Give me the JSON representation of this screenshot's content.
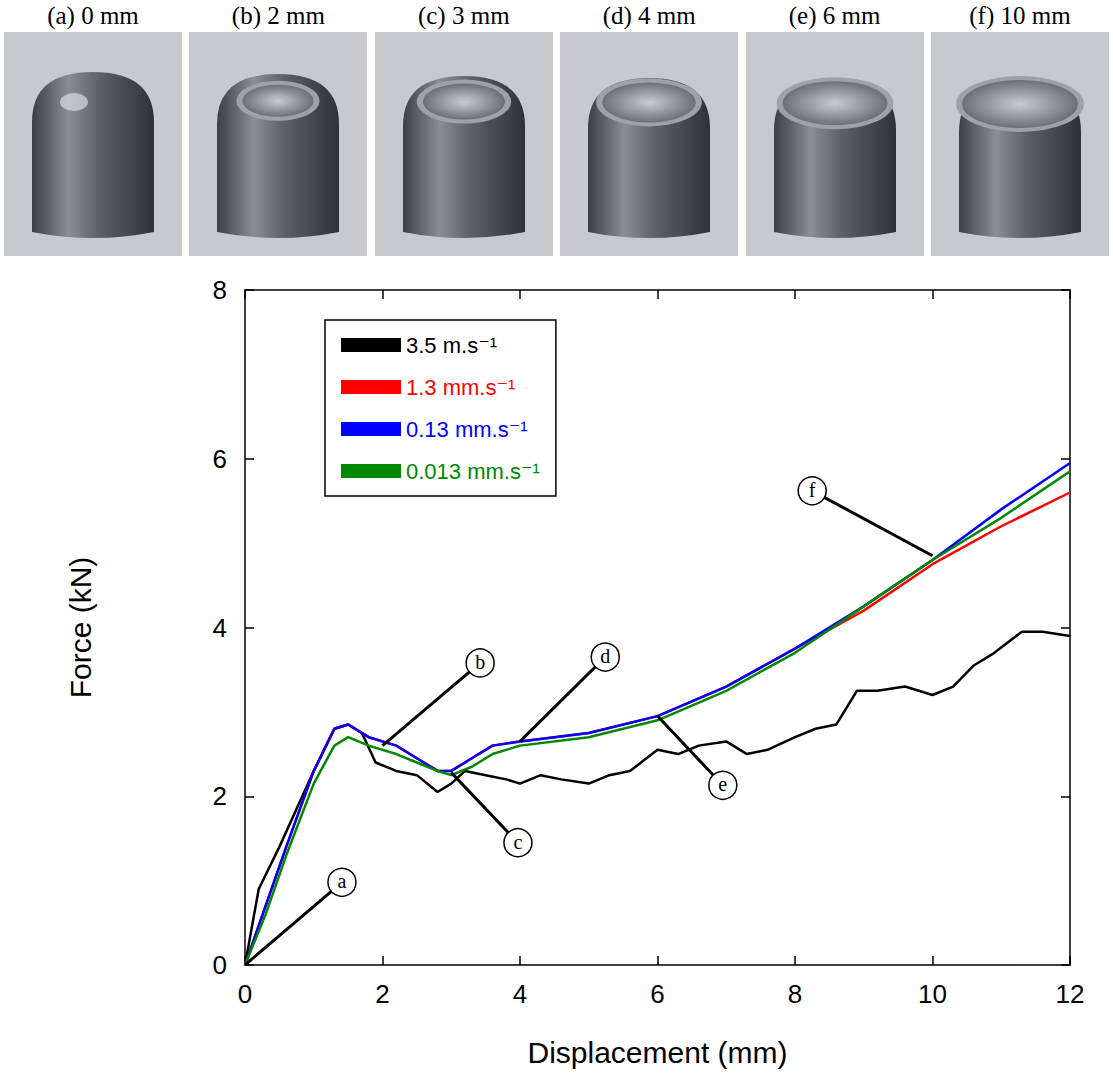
{
  "chart_data": {
    "type": "line",
    "x_label": "Displacement (mm)",
    "y_label": "Force (kN)",
    "xlim": [
      0,
      12
    ],
    "ylim": [
      0,
      8
    ],
    "xticks": [
      0,
      2,
      4,
      6,
      8,
      10,
      12
    ],
    "yticks": [
      0,
      2,
      4,
      6,
      8
    ],
    "legend": "upper left",
    "series": [
      {
        "name": "3.5 m.s⁻¹",
        "color": "#000000",
        "x": [
          0,
          0.2,
          0.5,
          1,
          1.3,
          1.5,
          1.7,
          1.9,
          2.2,
          2.5,
          2.8,
          3,
          3.2,
          3.5,
          3.8,
          4,
          4.3,
          4.6,
          5,
          5.3,
          5.6,
          6,
          6.3,
          6.6,
          7,
          7.3,
          7.6,
          8,
          8.3,
          8.6,
          8.9,
          9.2,
          9.6,
          10,
          10.3,
          10.6,
          10.9,
          11.3,
          11.6,
          12
        ],
        "values": [
          0,
          0.9,
          1.4,
          2.3,
          2.8,
          2.85,
          2.75,
          2.4,
          2.3,
          2.25,
          2.05,
          2.15,
          2.3,
          2.25,
          2.2,
          2.15,
          2.25,
          2.2,
          2.15,
          2.25,
          2.3,
          2.55,
          2.5,
          2.6,
          2.65,
          2.5,
          2.55,
          2.7,
          2.8,
          2.85,
          3.25,
          3.25,
          3.3,
          3.2,
          3.3,
          3.55,
          3.7,
          3.95,
          3.95,
          3.9
        ]
      },
      {
        "name": "1.3 mm.s⁻¹",
        "color": "#ff0000",
        "x": [
          0,
          0.3,
          0.6,
          1,
          1.3,
          1.5,
          1.8,
          2.2,
          2.5,
          2.8,
          3,
          3.3,
          3.6,
          4,
          5,
          6,
          7,
          8,
          9,
          10,
          11,
          12
        ],
        "values": [
          0,
          0.7,
          1.4,
          2.3,
          2.8,
          2.85,
          2.7,
          2.6,
          2.45,
          2.3,
          2.3,
          2.45,
          2.6,
          2.65,
          2.75,
          2.95,
          3.3,
          3.75,
          4.2,
          4.75,
          5.2,
          5.6
        ]
      },
      {
        "name": "0.13 mm.s⁻¹",
        "color": "#0000ff",
        "x": [
          0,
          0.3,
          0.6,
          1,
          1.3,
          1.5,
          1.8,
          2.2,
          2.5,
          2.8,
          3,
          3.3,
          3.6,
          4,
          5,
          6,
          7,
          8,
          9,
          10,
          11,
          12
        ],
        "values": [
          0,
          0.7,
          1.4,
          2.3,
          2.8,
          2.85,
          2.7,
          2.6,
          2.45,
          2.3,
          2.3,
          2.45,
          2.6,
          2.65,
          2.75,
          2.95,
          3.3,
          3.75,
          4.25,
          4.8,
          5.4,
          5.95
        ]
      },
      {
        "name": "0.013 mm.s⁻¹",
        "color": "#008800",
        "x": [
          0,
          0.3,
          0.6,
          1,
          1.3,
          1.5,
          1.8,
          2.2,
          2.5,
          2.8,
          3,
          3.3,
          3.6,
          4,
          5,
          6,
          7,
          8,
          9,
          10,
          11,
          12
        ],
        "values": [
          0,
          0.6,
          1.3,
          2.15,
          2.6,
          2.7,
          2.6,
          2.5,
          2.4,
          2.3,
          2.25,
          2.35,
          2.5,
          2.6,
          2.7,
          2.9,
          3.25,
          3.7,
          4.25,
          4.8,
          5.3,
          5.85
        ]
      }
    ],
    "annotations": [
      {
        "text": "a",
        "x": 0,
        "y": 0,
        "text_x": 1.41,
        "text_y": 0.98
      },
      {
        "text": "b",
        "x": 2.0,
        "y": 2.6,
        "text_x": 3.42,
        "text_y": 3.58
      },
      {
        "text": "c",
        "x": 3.0,
        "y": 2.28,
        "text_x": 3.97,
        "text_y": 1.45
      },
      {
        "text": "d",
        "x": 4.0,
        "y": 2.65,
        "text_x": 5.24,
        "text_y": 3.65
      },
      {
        "text": "e",
        "x": 6.0,
        "y": 2.95,
        "text_x": 6.95,
        "text_y": 2.13
      },
      {
        "text": "f",
        "x": 10.0,
        "y": 4.85,
        "text_x": 8.25,
        "text_y": 5.62
      }
    ],
    "photo_captions": [
      "(a) 0 mm",
      "(b) 2 mm",
      "(c) 3 mm",
      "(d) 4 mm",
      "(e) 6 mm",
      "(f) 10 mm"
    ]
  }
}
